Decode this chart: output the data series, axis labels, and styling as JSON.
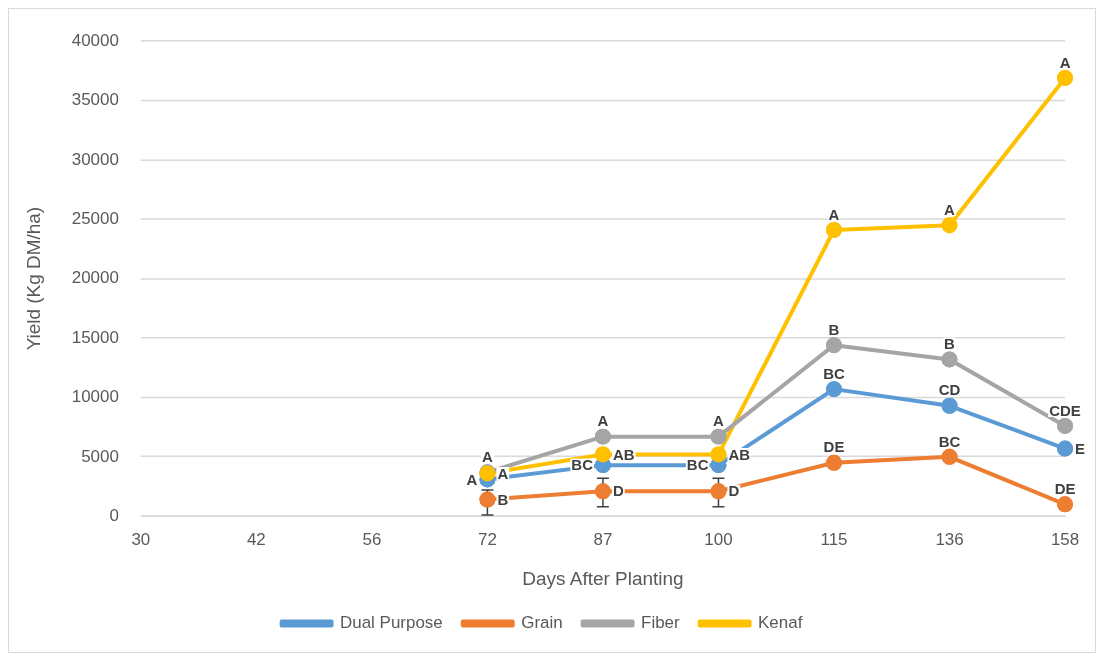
{
  "chart_data": {
    "type": "line",
    "xlabel": "Days After Planting",
    "ylabel": "Yield (Kg DM/ha)",
    "categories": [
      "30",
      "42",
      "56",
      "72",
      "87",
      "100",
      "115",
      "136",
      "158"
    ],
    "ylim": [
      0,
      40000
    ],
    "yticks": [
      0,
      5000,
      10000,
      15000,
      20000,
      25000,
      30000,
      35000,
      40000
    ],
    "grid": "y",
    "legend": "bottom",
    "marker": "circle",
    "line_style": "solid",
    "series": [
      {
        "name": "Dual Purpose",
        "color": "#5b9bd5",
        "values": [
          null,
          null,
          null,
          3100,
          4300,
          4300,
          10700,
          9300,
          5700
        ],
        "value_labels": [
          null,
          null,
          null,
          "A",
          "BC",
          "BC",
          "BC",
          "CD",
          "E"
        ]
      },
      {
        "name": "Grain",
        "color": "#ed7d31",
        "values": [
          null,
          null,
          null,
          1400,
          2100,
          2100,
          4500,
          5000,
          1000
        ],
        "errors": [
          null,
          null,
          null,
          [
            100,
            2200
          ],
          [
            800,
            3200
          ],
          [
            800,
            3200
          ],
          null,
          null,
          null
        ],
        "value_labels": [
          null,
          null,
          null,
          "B",
          "D",
          "D",
          "DE",
          "BC",
          "DE"
        ]
      },
      {
        "name": "Fiber",
        "color": "#a5a5a5",
        "values": [
          null,
          null,
          null,
          3700,
          6700,
          6700,
          14400,
          13200,
          7600
        ],
        "value_labels": [
          null,
          null,
          null,
          "A",
          "A",
          "A",
          "B",
          "B",
          "CDE"
        ]
      },
      {
        "name": "Kenaf",
        "color": "#ffc000",
        "values": [
          null,
          null,
          null,
          3600,
          5200,
          5200,
          24100,
          24500,
          36900
        ],
        "value_labels": [
          null,
          null,
          null,
          "A",
          "AB",
          "AB",
          "A",
          "A",
          "A"
        ]
      }
    ]
  }
}
